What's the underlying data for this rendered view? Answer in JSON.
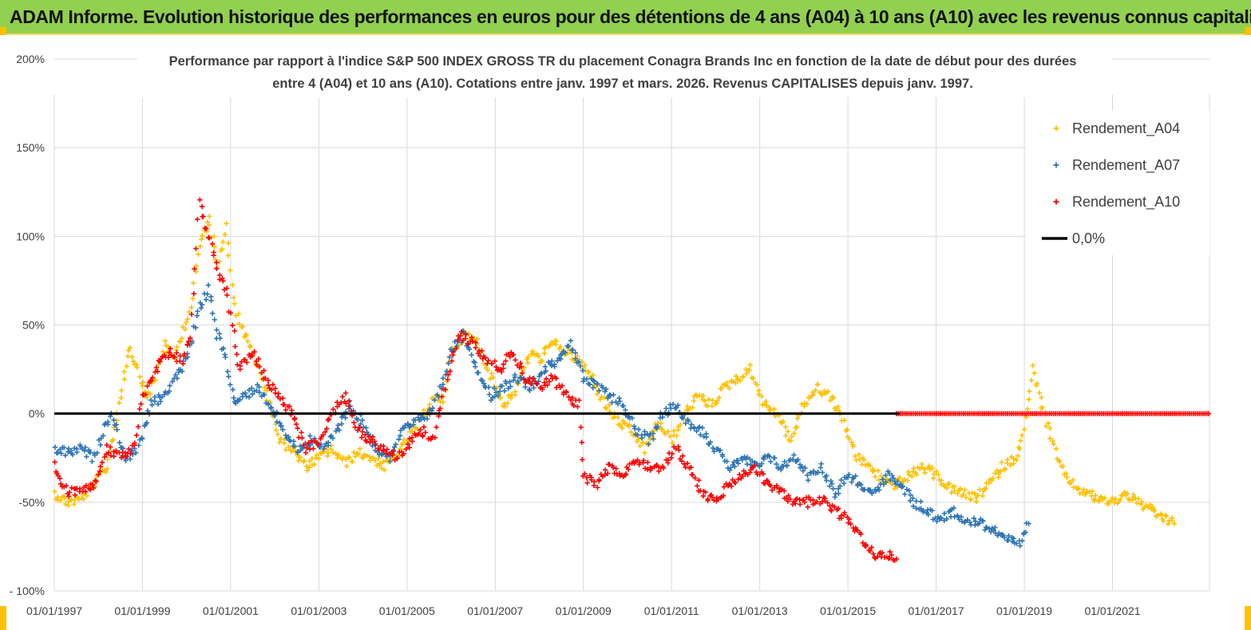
{
  "banner": {
    "title": "ADAM Informe. Evolution historique des performances en euros pour des détentions de 4 ans (A04) à 10 ans (A10) avec les revenus connus capitalisés"
  },
  "chart_data": {
    "type": "scatter",
    "title_lines": [
      "Performance par rapport à l'indice S&P 500 INDEX GROSS TR  du placement Conagra Brands Inc en fonction de la date de début pour des durées",
      "entre 4 (A04) et 10 ans (A10). Cotations entre janv. 1997 et mars. 2026. Revenus CAPITALISES depuis janv. 1997."
    ],
    "xlim": [
      1997.0,
      2023.2
    ],
    "ylim": [
      -100,
      200
    ],
    "y_ticks": [
      200,
      150,
      100,
      50,
      0,
      -50,
      -100
    ],
    "y_tick_labels": [
      "200%",
      "150%",
      "100%",
      "50%",
      "0%",
      "-50%",
      "- 100%"
    ],
    "x_ticks": [
      1997,
      1999,
      2001,
      2003,
      2005,
      2007,
      2009,
      2011,
      2013,
      2015,
      2017,
      2019,
      2021
    ],
    "x_tick_labels": [
      "01/01/1997",
      "01/01/1999",
      "01/01/2001",
      "01/01/2003",
      "01/01/2005",
      "01/01/2007",
      "01/01/2009",
      "01/01/2011",
      "01/01/2013",
      "01/01/2015",
      "01/01/2017",
      "01/01/2019",
      "01/01/2021"
    ],
    "reference_line": {
      "name": "0,0%",
      "value": 0,
      "color": "#000000"
    },
    "legend": [
      {
        "name": "Rendement_A04",
        "color": "#ffc000",
        "marker": "+"
      },
      {
        "name": "Rendement_A07",
        "color": "#2e75b6",
        "marker": "+"
      },
      {
        "name": "Rendement_A10",
        "color": "#ff0000",
        "marker": "+"
      },
      {
        "name": "0,0%",
        "color": "#000000",
        "marker": "line"
      }
    ],
    "series": [
      {
        "name": "Rendement_A04",
        "color": "#ffc000",
        "x": [
          1997.0,
          1997.3,
          1997.6,
          1997.9,
          1998.2,
          1998.5,
          1998.7,
          1998.9,
          1999.1,
          1999.3,
          1999.5,
          1999.7,
          1999.9,
          2000.1,
          2000.3,
          2000.5,
          2000.7,
          2000.9,
          2001.1,
          2001.3,
          2001.5,
          2001.7,
          2001.9,
          2002.1,
          2002.4,
          2002.7,
          2003.0,
          2003.3,
          2003.6,
          2003.9,
          2004.2,
          2004.5,
          2004.8,
          2005.0,
          2005.3,
          2005.6,
          2005.8,
          2006.0,
          2006.3,
          2006.6,
          2006.9,
          2007.2,
          2007.5,
          2007.8,
          2008.0,
          2008.3,
          2008.6,
          2008.9,
          2009.2,
          2009.5,
          2009.8,
          2010.1,
          2010.4,
          2010.7,
          2011.0,
          2011.3,
          2011.6,
          2011.9,
          2012.2,
          2012.5,
          2012.8,
          2013.1,
          2013.4,
          2013.7,
          2014.0,
          2014.3,
          2014.6,
          2014.9,
          2015.2,
          2015.5,
          2015.8,
          2016.1,
          2016.4,
          2016.7,
          2017.0,
          2017.3,
          2017.6,
          2017.9,
          2018.2,
          2018.5,
          2018.8,
          2019.0,
          2019.2,
          2019.5,
          2019.8,
          2020.1,
          2020.4,
          2020.7,
          2021.0,
          2021.3,
          2021.6,
          2021.9,
          2022.1,
          2022.4
        ],
        "y": [
          -45,
          -50,
          -48,
          -40,
          -30,
          10,
          38,
          25,
          10,
          20,
          40,
          30,
          45,
          60,
          95,
          110,
          85,
          105,
          60,
          45,
          35,
          20,
          5,
          -15,
          -20,
          -30,
          -25,
          -20,
          -28,
          -22,
          -25,
          -30,
          -22,
          -15,
          -5,
          10,
          5,
          35,
          45,
          40,
          20,
          5,
          15,
          35,
          30,
          40,
          35,
          30,
          20,
          5,
          -5,
          -10,
          -20,
          -5,
          -15,
          0,
          10,
          5,
          15,
          20,
          25,
          5,
          0,
          -15,
          5,
          15,
          10,
          -5,
          -25,
          -30,
          -38,
          -40,
          -35,
          -30,
          -35,
          -42,
          -45,
          -48,
          -40,
          -30,
          -25,
          -10,
          25,
          -5,
          -30,
          -40,
          -45,
          -48,
          -50,
          -45,
          -50,
          -55,
          -58,
          -62
        ]
      },
      {
        "name": "Rendement_A07",
        "color": "#2e75b6",
        "x": [
          1997.0,
          1997.3,
          1997.6,
          1997.9,
          1998.1,
          1998.3,
          1998.6,
          1998.9,
          1999.2,
          1999.5,
          1999.7,
          1999.9,
          2000.1,
          2000.3,
          2000.5,
          2000.7,
          2000.9,
          2001.1,
          2001.3,
          2001.6,
          2001.9,
          2002.2,
          2002.5,
          2002.8,
          2003.1,
          2003.4,
          2003.7,
          2004.0,
          2004.3,
          2004.6,
          2004.9,
          2005.2,
          2005.5,
          2005.7,
          2006.0,
          2006.3,
          2006.6,
          2006.9,
          2007.2,
          2007.5,
          2007.8,
          2008.1,
          2008.4,
          2008.7,
          2009.0,
          2009.3,
          2009.6,
          2009.9,
          2010.2,
          2010.5,
          2010.8,
          2011.1,
          2011.4,
          2011.7,
          2012.0,
          2012.3,
          2012.6,
          2012.9,
          2013.2,
          2013.5,
          2013.8,
          2014.1,
          2014.4,
          2014.7,
          2015.0,
          2015.3,
          2015.6,
          2015.9,
          2016.2,
          2016.5,
          2016.8,
          2017.1,
          2017.4,
          2017.7,
          2018.0,
          2018.3,
          2018.6,
          2018.9,
          2019.1
        ],
        "y": [
          -20,
          -22,
          -20,
          -25,
          -10,
          0,
          -25,
          -20,
          5,
          10,
          20,
          25,
          40,
          60,
          70,
          45,
          30,
          5,
          10,
          15,
          5,
          -10,
          -20,
          -15,
          -20,
          -10,
          5,
          -5,
          -20,
          -25,
          -10,
          -5,
          0,
          10,
          35,
          45,
          25,
          10,
          15,
          20,
          15,
          25,
          30,
          40,
          20,
          15,
          10,
          5,
          -10,
          -15,
          0,
          5,
          -5,
          -10,
          -20,
          -30,
          -25,
          -30,
          -25,
          -30,
          -25,
          -35,
          -30,
          -45,
          -35,
          -40,
          -45,
          -35,
          -40,
          -50,
          -55,
          -60,
          -55,
          -60,
          -62,
          -65,
          -70,
          -75,
          -62
        ]
      },
      {
        "name": "Rendement_A10",
        "color": "#ff0000",
        "x": [
          1997.0,
          1997.3,
          1997.6,
          1997.9,
          1998.2,
          1998.5,
          1998.8,
          1999.0,
          1999.3,
          1999.6,
          1999.9,
          2000.1,
          2000.3,
          2000.5,
          2000.7,
          2000.9,
          2001.2,
          2001.5,
          2001.8,
          2002.1,
          2002.4,
          2002.7,
          2003.0,
          2003.3,
          2003.6,
          2003.9,
          2004.2,
          2004.5,
          2004.8,
          2005.1,
          2005.4,
          2005.6,
          2005.9,
          2006.2,
          2006.5,
          2006.8,
          2007.1,
          2007.4,
          2007.7,
          2008.0,
          2008.3,
          2008.6,
          2008.9,
          2009.0,
          2009.3,
          2009.6,
          2009.9,
          2010.2,
          2010.5,
          2010.8,
          2011.1,
          2011.4,
          2011.7,
          2012.0,
          2012.3,
          2012.6,
          2012.9,
          2013.2,
          2013.5,
          2013.8,
          2014.1,
          2014.4,
          2014.7,
          2015.0,
          2015.3,
          2015.6,
          2015.9,
          2016.1
        ],
        "y": [
          -30,
          -45,
          -42,
          -40,
          -20,
          -25,
          -20,
          10,
          25,
          35,
          30,
          45,
          120,
          100,
          80,
          70,
          25,
          35,
          20,
          10,
          0,
          -20,
          -15,
          0,
          10,
          -10,
          -15,
          -20,
          -25,
          -15,
          -10,
          -15,
          20,
          45,
          40,
          30,
          25,
          35,
          20,
          15,
          20,
          10,
          5,
          -35,
          -40,
          -30,
          -35,
          -25,
          -30,
          -30,
          -20,
          -30,
          -45,
          -50,
          -40,
          -35,
          -30,
          -40,
          -45,
          -50,
          -50,
          -48,
          -55,
          -60,
          -70,
          -80,
          -80,
          -82
        ]
      }
    ],
    "flat_segment": {
      "series": "Rendement_A10",
      "x_start": 2016.1,
      "x_end": 2023.2,
      "y": 0
    }
  }
}
